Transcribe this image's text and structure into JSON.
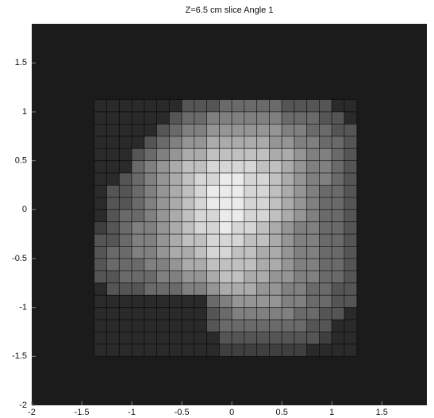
{
  "chart_data": {
    "type": "heatmap",
    "title": "Z=6.5 cm slice Angle 1",
    "xlim": [
      -2,
      1.95
    ],
    "ylim": [
      -2,
      1.9
    ],
    "xticks": [
      -2,
      -1.5,
      -1,
      -0.5,
      0,
      0.5,
      1,
      1.5
    ],
    "yticks": [
      -2,
      -1.5,
      -1,
      -0.5,
      0,
      0.5,
      1,
      1.5
    ],
    "xbins": [
      -1.375,
      -1.25,
      -1.125,
      -1,
      -0.875,
      -0.75,
      -0.625,
      -0.5,
      -0.375,
      -0.25,
      -0.125,
      0,
      0.125,
      0.25,
      0.375,
      0.5,
      0.625,
      0.75,
      0.875,
      1,
      1.125,
      1.25
    ],
    "ybins": [
      1.125,
      1,
      0.875,
      0.75,
      0.625,
      0.5,
      0.375,
      0.25,
      0.125,
      0,
      -0.125,
      -0.25,
      -0.375,
      -0.5,
      -0.625,
      -0.75,
      -0.875,
      -1,
      -1.125,
      -1.25,
      -1.375,
      -1.5
    ],
    "colormap": "gray",
    "values": [
      [
        0.1,
        0.1,
        0.1,
        0.1,
        0.1,
        0.1,
        0.1,
        0.3,
        0.3,
        0.3,
        0.4,
        0.4,
        0.4,
        0.4,
        0.4,
        0.3,
        0.3,
        0.3,
        0.3,
        0.1,
        0.1
      ],
      [
        0.1,
        0.1,
        0.1,
        0.1,
        0.1,
        0.1,
        0.3,
        0.4,
        0.4,
        0.5,
        0.5,
        0.5,
        0.5,
        0.5,
        0.5,
        0.4,
        0.4,
        0.4,
        0.3,
        0.3,
        0.1
      ],
      [
        0.1,
        0.1,
        0.1,
        0.1,
        0.1,
        0.3,
        0.4,
        0.5,
        0.5,
        0.6,
        0.6,
        0.6,
        0.6,
        0.6,
        0.6,
        0.5,
        0.5,
        0.4,
        0.4,
        0.3,
        0.3
      ],
      [
        0.1,
        0.1,
        0.1,
        0.1,
        0.3,
        0.4,
        0.5,
        0.6,
        0.6,
        0.7,
        0.7,
        0.7,
        0.7,
        0.7,
        0.6,
        0.6,
        0.5,
        0.5,
        0.4,
        0.4,
        0.3
      ],
      [
        0.1,
        0.1,
        0.1,
        0.3,
        0.4,
        0.5,
        0.6,
        0.7,
        0.7,
        0.8,
        0.8,
        0.8,
        0.8,
        0.8,
        0.7,
        0.7,
        0.6,
        0.5,
        0.5,
        0.4,
        0.3
      ],
      [
        0.1,
        0.1,
        0.1,
        0.4,
        0.5,
        0.6,
        0.7,
        0.8,
        0.8,
        0.9,
        0.9,
        0.9,
        0.9,
        0.8,
        0.8,
        0.7,
        0.6,
        0.5,
        0.5,
        0.4,
        0.3
      ],
      [
        0.1,
        0.1,
        0.3,
        0.4,
        0.5,
        0.6,
        0.7,
        0.8,
        0.9,
        0.9,
        1,
        1,
        0.9,
        0.9,
        0.8,
        0.7,
        0.6,
        0.5,
        0.5,
        0.4,
        0.3
      ],
      [
        0.1,
        0.3,
        0.3,
        0.4,
        0.5,
        0.6,
        0.7,
        0.8,
        0.9,
        1,
        1,
        1,
        0.9,
        0.9,
        0.8,
        0.7,
        0.6,
        0.5,
        0.4,
        0.4,
        0.3
      ],
      [
        0.1,
        0.3,
        0.3,
        0.4,
        0.5,
        0.6,
        0.7,
        0.8,
        0.9,
        1,
        1,
        1,
        0.9,
        0.9,
        0.8,
        0.7,
        0.6,
        0.5,
        0.4,
        0.4,
        0.3
      ],
      [
        0.1,
        0.3,
        0.4,
        0.4,
        0.5,
        0.6,
        0.7,
        0.8,
        0.9,
        0.9,
        1,
        1,
        0.9,
        0.9,
        0.8,
        0.7,
        0.6,
        0.5,
        0.4,
        0.4,
        0.3
      ],
      [
        0.2,
        0.3,
        0.4,
        0.5,
        0.5,
        0.6,
        0.7,
        0.8,
        0.9,
        0.9,
        1,
        0.9,
        0.9,
        0.8,
        0.7,
        0.6,
        0.5,
        0.5,
        0.4,
        0.4,
        0.3
      ],
      [
        0.3,
        0.3,
        0.4,
        0.5,
        0.5,
        0.6,
        0.7,
        0.8,
        0.8,
        0.9,
        0.9,
        0.9,
        0.8,
        0.8,
        0.7,
        0.6,
        0.5,
        0.5,
        0.4,
        0.4,
        0.3
      ],
      [
        0.3,
        0.4,
        0.4,
        0.5,
        0.5,
        0.6,
        0.7,
        0.7,
        0.8,
        0.9,
        0.9,
        0.8,
        0.8,
        0.7,
        0.7,
        0.6,
        0.5,
        0.5,
        0.4,
        0.4,
        0.3
      ],
      [
        0.3,
        0.4,
        0.4,
        0.4,
        0.5,
        0.5,
        0.6,
        0.7,
        0.7,
        0.8,
        0.8,
        0.8,
        0.8,
        0.7,
        0.7,
        0.6,
        0.5,
        0.5,
        0.4,
        0.4,
        0.3
      ],
      [
        0.3,
        0.3,
        0.4,
        0.4,
        0.4,
        0.5,
        0.5,
        0.6,
        0.6,
        0.7,
        0.8,
        0.8,
        0.7,
        0.7,
        0.6,
        0.6,
        0.5,
        0.5,
        0.4,
        0.4,
        0.3
      ],
      [
        0.1,
        0.3,
        0.3,
        0.3,
        0.4,
        0.4,
        0.4,
        0.5,
        0.5,
        0.6,
        0.7,
        0.7,
        0.7,
        0.6,
        0.6,
        0.5,
        0.5,
        0.4,
        0.4,
        0.3,
        0.3
      ],
      [
        0.1,
        0.1,
        0.1,
        0.1,
        0.1,
        0.1,
        0.1,
        0.1,
        0.1,
        0.4,
        0.5,
        0.6,
        0.6,
        0.6,
        0.6,
        0.5,
        0.5,
        0.4,
        0.4,
        0.3,
        0.3
      ],
      [
        0.1,
        0.1,
        0.1,
        0.1,
        0.1,
        0.1,
        0.1,
        0.1,
        0.1,
        0.3,
        0.4,
        0.5,
        0.5,
        0.5,
        0.5,
        0.5,
        0.4,
        0.4,
        0.3,
        0.3,
        0.1
      ],
      [
        0.1,
        0.1,
        0.1,
        0.1,
        0.1,
        0.1,
        0.1,
        0.1,
        0.1,
        0.3,
        0.4,
        0.4,
        0.4,
        0.4,
        0.4,
        0.4,
        0.4,
        0.3,
        0.3,
        0.1,
        0.1
      ],
      [
        0.1,
        0.1,
        0.1,
        0.1,
        0.1,
        0.1,
        0.1,
        0.1,
        0.1,
        0.1,
        0.3,
        0.3,
        0.3,
        0.3,
        0.3,
        0.3,
        0.3,
        0.3,
        0.2,
        0.1,
        0.1
      ],
      [
        0.1,
        0.1,
        0.1,
        0.1,
        0.1,
        0.1,
        0.1,
        0.1,
        0.1,
        0.1,
        0.2,
        0.2,
        0.2,
        0.2,
        0.2,
        0.2,
        0.2,
        0.1,
        0.1,
        0.1,
        0.1
      ]
    ]
  }
}
